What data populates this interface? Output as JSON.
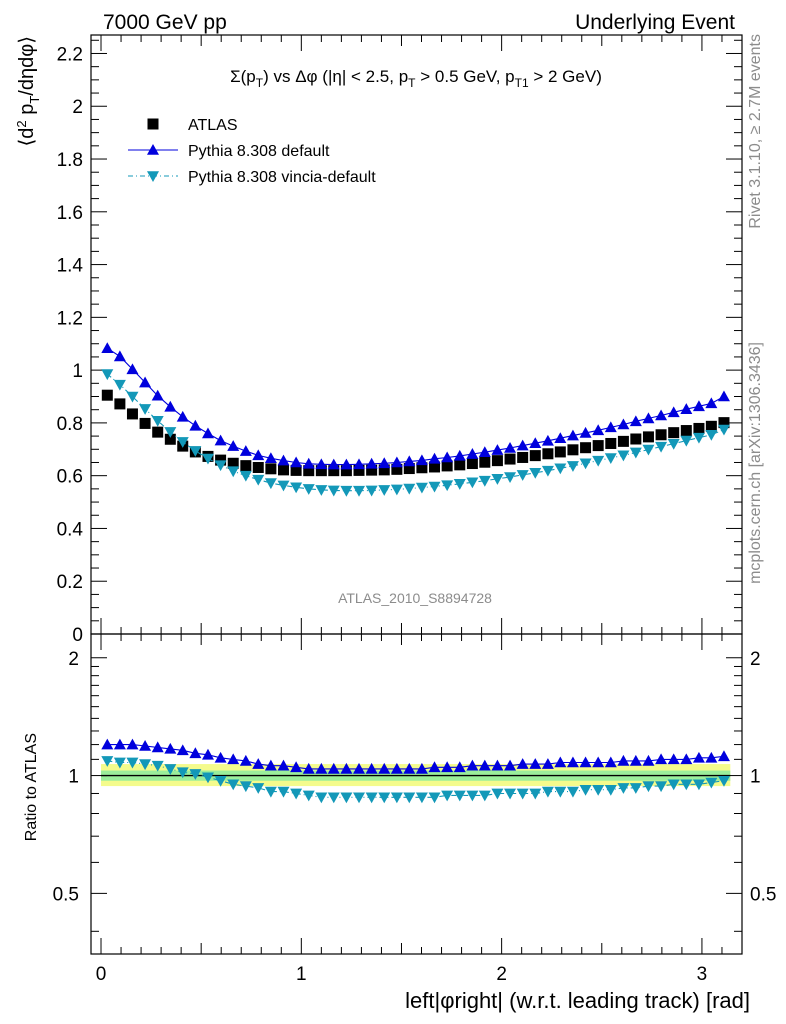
{
  "header": {
    "left": "7000 GeV pp",
    "right": "Underlying Event"
  },
  "side_labels": {
    "rivet": "Rivet 3.1.10, ≥ 2.7M events",
    "mcplots": "mcplots.cern.ch [arXiv:1306.3436]"
  },
  "watermark": "ATLAS_2010_S8894728",
  "chart_data": [
    {
      "type": "scatter",
      "title": "Σ(pT) vs Δφ (|η| < 2.5, pT > 0.5 GeV, pT1 > 2 GeV)",
      "ylabel": "⟨d² pT/dηdφ⟩",
      "xlim": [
        -0.05,
        3.2
      ],
      "ylim": [
        0,
        2.27
      ],
      "yticks": [
        "0",
        "0.2",
        "0.4",
        "0.6",
        "0.8",
        "1",
        "1.2",
        "1.4",
        "1.6",
        "1.8",
        "2",
        "2.2"
      ],
      "legend": [
        "ATLAS",
        "Pythia 8.308 default",
        "Pythia 8.308 vincia-default"
      ],
      "legend_position": "top-left",
      "x": [
        0.0314,
        0.0942,
        0.157,
        0.22,
        0.283,
        0.346,
        0.408,
        0.471,
        0.534,
        0.597,
        0.66,
        0.723,
        0.785,
        0.848,
        0.911,
        0.974,
        1.037,
        1.1,
        1.162,
        1.225,
        1.288,
        1.351,
        1.414,
        1.477,
        1.539,
        1.602,
        1.665,
        1.728,
        1.791,
        1.854,
        1.916,
        1.979,
        2.042,
        2.105,
        2.168,
        2.231,
        2.293,
        2.356,
        2.419,
        2.482,
        2.545,
        2.608,
        2.67,
        2.733,
        2.796,
        2.859,
        2.922,
        2.985,
        3.047,
        3.11
      ],
      "series": [
        {
          "name": "ATLAS",
          "marker": "square",
          "color": "#000000",
          "values": [
            0.905,
            0.872,
            0.834,
            0.798,
            0.765,
            0.738,
            0.712,
            0.69,
            0.673,
            0.659,
            0.647,
            0.638,
            0.631,
            0.626,
            0.622,
            0.62,
            0.619,
            0.619,
            0.619,
            0.619,
            0.62,
            0.621,
            0.622,
            0.624,
            0.627,
            0.63,
            0.633,
            0.637,
            0.641,
            0.646,
            0.651,
            0.657,
            0.663,
            0.669,
            0.676,
            0.683,
            0.69,
            0.698,
            0.706,
            0.714,
            0.722,
            0.73,
            0.739,
            0.747,
            0.755,
            0.763,
            0.771,
            0.779,
            0.787,
            0.801
          ]
        },
        {
          "name": "Pythia 8.308 default",
          "marker": "triangle-up",
          "color": "#0000dd",
          "values": [
            1.083,
            1.052,
            1.003,
            0.953,
            0.903,
            0.861,
            0.823,
            0.789,
            0.76,
            0.733,
            0.712,
            0.693,
            0.677,
            0.666,
            0.657,
            0.65,
            0.645,
            0.643,
            0.642,
            0.642,
            0.643,
            0.645,
            0.647,
            0.65,
            0.654,
            0.658,
            0.664,
            0.669,
            0.675,
            0.682,
            0.689,
            0.697,
            0.705,
            0.714,
            0.723,
            0.732,
            0.742,
            0.752,
            0.762,
            0.772,
            0.783,
            0.794,
            0.806,
            0.817,
            0.828,
            0.84,
            0.852,
            0.863,
            0.874,
            0.9
          ]
        },
        {
          "name": "Pythia 8.308 vincia-default",
          "marker": "triangle-down",
          "color": "#1398b8",
          "values": [
            0.985,
            0.945,
            0.9,
            0.853,
            0.808,
            0.766,
            0.728,
            0.694,
            0.665,
            0.64,
            0.617,
            0.6,
            0.585,
            0.572,
            0.563,
            0.556,
            0.55,
            0.546,
            0.544,
            0.543,
            0.543,
            0.544,
            0.546,
            0.548,
            0.551,
            0.555,
            0.559,
            0.564,
            0.569,
            0.575,
            0.581,
            0.588,
            0.595,
            0.603,
            0.611,
            0.619,
            0.628,
            0.637,
            0.647,
            0.657,
            0.667,
            0.677,
            0.688,
            0.699,
            0.71,
            0.721,
            0.733,
            0.744,
            0.755,
            0.775
          ]
        }
      ]
    },
    {
      "type": "scatter",
      "xlabel": "left|φright| (w.r.t. leading track) [rad]",
      "ylabel": "Ratio to ATLAS",
      "xlim": [
        -0.05,
        3.2
      ],
      "ylim": [
        0.35,
        2.3
      ],
      "yscale": "log",
      "yticks": [
        "0.5",
        "1",
        "2"
      ],
      "xticks": [
        "0",
        "1",
        "2",
        "3"
      ],
      "band_inner": [
        0.97,
        1.03
      ],
      "band_outer": [
        0.94,
        1.07
      ],
      "series": [
        {
          "name": "Pythia 8.308 default",
          "marker": "triangle-up",
          "color": "#0000dd",
          "values": [
            1.2,
            1.2,
            1.2,
            1.19,
            1.18,
            1.17,
            1.16,
            1.14,
            1.13,
            1.11,
            1.1,
            1.09,
            1.07,
            1.06,
            1.06,
            1.05,
            1.04,
            1.04,
            1.04,
            1.04,
            1.04,
            1.04,
            1.04,
            1.04,
            1.04,
            1.04,
            1.05,
            1.05,
            1.05,
            1.06,
            1.06,
            1.06,
            1.06,
            1.07,
            1.07,
            1.07,
            1.08,
            1.08,
            1.08,
            1.08,
            1.08,
            1.09,
            1.09,
            1.09,
            1.1,
            1.1,
            1.1,
            1.11,
            1.11,
            1.12
          ]
        },
        {
          "name": "Pythia 8.308 vincia-default",
          "marker": "triangle-down",
          "color": "#1398b8",
          "values": [
            1.09,
            1.08,
            1.08,
            1.07,
            1.06,
            1.04,
            1.02,
            1.01,
            0.99,
            0.97,
            0.95,
            0.94,
            0.93,
            0.91,
            0.91,
            0.9,
            0.89,
            0.88,
            0.88,
            0.88,
            0.88,
            0.88,
            0.88,
            0.88,
            0.88,
            0.88,
            0.88,
            0.89,
            0.89,
            0.89,
            0.89,
            0.9,
            0.9,
            0.9,
            0.9,
            0.91,
            0.91,
            0.91,
            0.92,
            0.92,
            0.92,
            0.93,
            0.93,
            0.94,
            0.94,
            0.95,
            0.95,
            0.95,
            0.96,
            0.97
          ]
        }
      ]
    }
  ]
}
